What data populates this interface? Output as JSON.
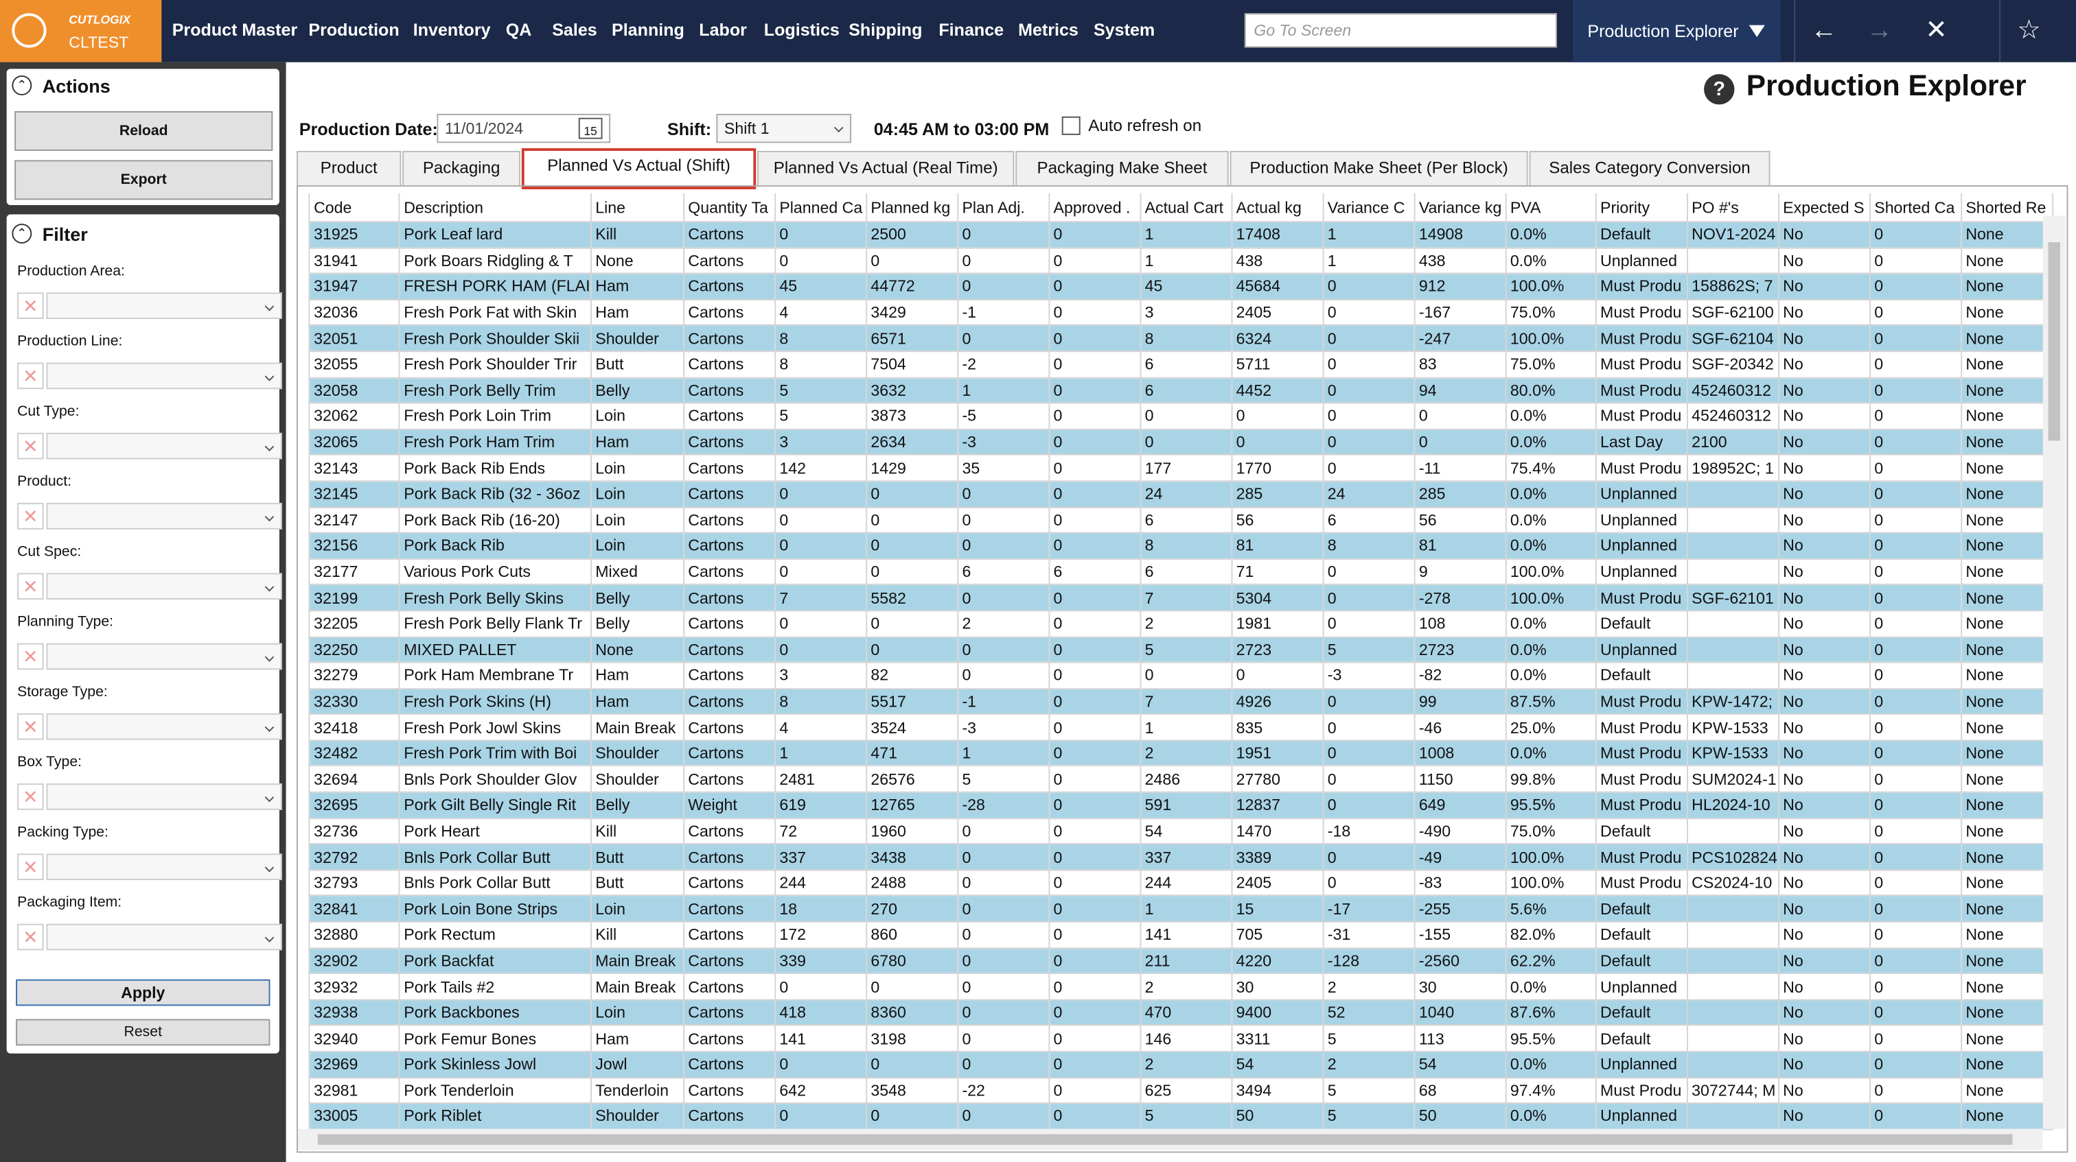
{
  "nav": {
    "logo_brand": "CUTLOGIX",
    "logo_env": "CLTEST",
    "menu": [
      "Product Master",
      "Production",
      "Inventory",
      "QA",
      "Sales",
      "Planning",
      "Labor",
      "Logistics",
      "Shipping",
      "Finance",
      "Metrics",
      "System"
    ],
    "search_placeholder": "Go To Screen",
    "screen": "Production Explorer"
  },
  "actions": {
    "title": "Actions",
    "buttons": [
      "Reload",
      "Export"
    ]
  },
  "filter": {
    "title": "Filter",
    "fields": [
      "Production Area:",
      "Production Line:",
      "Cut Type:",
      "Product:",
      "Cut Spec:",
      "Planning Type:",
      "Storage Type:",
      "Box Type:",
      "Packing Type:",
      "Packaging Item:"
    ],
    "buttons": [
      "Apply",
      "Reset"
    ]
  },
  "page": {
    "title": "Production Explorer",
    "date_label": "Production Date:",
    "date": "11/01/2024",
    "calendar_day": "15",
    "shift_label": "Shift:",
    "shift": "Shift 1",
    "time_range": "04:45 AM to 03:00 PM",
    "auto_refresh": "Auto refresh on"
  },
  "tabs": [
    "Product",
    "Packaging",
    "Planned Vs Actual (Shift)",
    "Planned Vs Actual (Real Time)",
    "Packaging Make Sheet",
    "Production Make Sheet (Per Block)",
    "Sales Category Conversion"
  ],
  "active_tab": 2,
  "table": {
    "columns": [
      "Code",
      "Description",
      "Line",
      "Quantity Ta",
      "Planned Ca",
      "Planned kg",
      "Plan Adj.",
      "Approved .",
      "Actual Cart",
      "Actual kg",
      "Variance C",
      "Variance kg",
      "PVA",
      "Priority",
      "PO #'s",
      "Expected S",
      "Shorted Ca",
      "Shorted Re"
    ],
    "rows": [
      [
        "31925",
        "Pork Leaf lard",
        "Kill",
        "Cartons",
        "0",
        "2500",
        "0",
        "0",
        "1",
        "17408",
        "1",
        "14908",
        "0.0%",
        "Default",
        "NOV1-2024",
        "No",
        "0",
        "None"
      ],
      [
        "31941",
        "Pork Boars Ridgling & T",
        "None",
        "Cartons",
        "0",
        "0",
        "0",
        "0",
        "1",
        "438",
        "1",
        "438",
        "0.0%",
        "Unplanned",
        null,
        "No",
        "0",
        "None"
      ],
      [
        "31947",
        "FRESH PORK HAM (FLAI",
        "Ham",
        "Cartons",
        "45",
        "44772",
        "0",
        "0",
        "45",
        "45684",
        "0",
        "912",
        "100.0%",
        "Must Produ",
        "158862S; 7",
        "No",
        "0",
        "None"
      ],
      [
        "32036",
        "Fresh Pork Fat with Skin",
        "Ham",
        "Cartons",
        "4",
        "3429",
        "-1",
        "0",
        "3",
        "2405",
        "0",
        "-167",
        "75.0%",
        "Must Produ",
        "SGF-62100",
        "No",
        "0",
        "None"
      ],
      [
        "32051",
        "Fresh Pork Shoulder Skii",
        "Shoulder",
        "Cartons",
        "8",
        "6571",
        "0",
        "0",
        "8",
        "6324",
        "0",
        "-247",
        "100.0%",
        "Must Produ",
        "SGF-62104",
        "No",
        "0",
        "None"
      ],
      [
        "32055",
        "Fresh Pork Shoulder Trir",
        "Butt",
        "Cartons",
        "8",
        "7504",
        "-2",
        "0",
        "6",
        "5711",
        "0",
        "83",
        "75.0%",
        "Must Produ",
        "SGF-20342",
        "No",
        "0",
        "None"
      ],
      [
        "32058",
        "Fresh Pork Belly Trim",
        "Belly",
        "Cartons",
        "5",
        "3632",
        "1",
        "0",
        "6",
        "4452",
        "0",
        "94",
        "80.0%",
        "Must Produ",
        "452460312",
        "No",
        "0",
        "None"
      ],
      [
        "32062",
        "Fresh Pork Loin Trim",
        "Loin",
        "Cartons",
        "5",
        "3873",
        "-5",
        "0",
        "0",
        "0",
        "0",
        "0",
        "0.0%",
        "Must Produ",
        "452460312",
        "No",
        "0",
        "None"
      ],
      [
        "32065",
        "Fresh Pork Ham Trim",
        "Ham",
        "Cartons",
        "3",
        "2634",
        "-3",
        "0",
        "0",
        "0",
        "0",
        "0",
        "0.0%",
        "Last Day",
        "2100",
        "No",
        "0",
        "None"
      ],
      [
        "32143",
        "Pork Back Rib Ends",
        "Loin",
        "Cartons",
        "142",
        "1429",
        "35",
        "0",
        "177",
        "1770",
        "0",
        "-11",
        "75.4%",
        "Must Produ",
        "198952C; 1",
        "No",
        "0",
        "None"
      ],
      [
        "32145",
        "Pork Back Rib (32 - 36oz",
        "Loin",
        "Cartons",
        "0",
        "0",
        "0",
        "0",
        "24",
        "285",
        "24",
        "285",
        "0.0%",
        "Unplanned",
        null,
        "No",
        "0",
        "None"
      ],
      [
        "32147",
        "Pork Back Rib (16-20)",
        "Loin",
        "Cartons",
        "0",
        "0",
        "0",
        "0",
        "6",
        "56",
        "6",
        "56",
        "0.0%",
        "Unplanned",
        null,
        "No",
        "0",
        "None"
      ],
      [
        "32156",
        "Pork Back Rib",
        "Loin",
        "Cartons",
        "0",
        "0",
        "0",
        "0",
        "8",
        "81",
        "8",
        "81",
        "0.0%",
        "Unplanned",
        null,
        "No",
        "0",
        "None"
      ],
      [
        "32177",
        "Various Pork Cuts",
        "Mixed",
        "Cartons",
        "0",
        "0",
        "6",
        "6",
        "6",
        "71",
        "0",
        "9",
        "100.0%",
        "Unplanned",
        null,
        "No",
        "0",
        "None"
      ],
      [
        "32199",
        "Fresh Pork Belly Skins",
        "Belly",
        "Cartons",
        "7",
        "5582",
        "0",
        "0",
        "7",
        "5304",
        "0",
        "-278",
        "100.0%",
        "Must Produ",
        "SGF-62101",
        "No",
        "0",
        "None"
      ],
      [
        "32205",
        "Fresh Pork Belly Flank Tr",
        "Belly",
        "Cartons",
        "0",
        "0",
        "2",
        "0",
        "2",
        "1981",
        "0",
        "108",
        "0.0%",
        "Default",
        null,
        "No",
        "0",
        "None"
      ],
      [
        "32250",
        "MIXED PALLET",
        "None",
        "Cartons",
        "0",
        "0",
        "0",
        "0",
        "5",
        "2723",
        "5",
        "2723",
        "0.0%",
        "Unplanned",
        null,
        "No",
        "0",
        "None"
      ],
      [
        "32279",
        "Pork Ham Membrane Tr",
        "Ham",
        "Cartons",
        "3",
        "82",
        "0",
        "0",
        "0",
        "0",
        "-3",
        "-82",
        "0.0%",
        "Default",
        null,
        "No",
        "0",
        "None"
      ],
      [
        "32330",
        "Fresh Pork Skins (H)",
        "Ham",
        "Cartons",
        "8",
        "5517",
        "-1",
        "0",
        "7",
        "4926",
        "0",
        "99",
        "87.5%",
        "Must Produ",
        "KPW-1472;",
        "No",
        "0",
        "None"
      ],
      [
        "32418",
        "Fresh Pork Jowl Skins",
        "Main Break",
        "Cartons",
        "4",
        "3524",
        "-3",
        "0",
        "1",
        "835",
        "0",
        "-46",
        "25.0%",
        "Must Produ",
        "KPW-1533",
        "No",
        "0",
        "None"
      ],
      [
        "32482",
        "Fresh Pork Trim with Boi",
        "Shoulder",
        "Cartons",
        "1",
        "471",
        "1",
        "0",
        "2",
        "1951",
        "0",
        "1008",
        "0.0%",
        "Must Produ",
        "KPW-1533",
        "No",
        "0",
        "None"
      ],
      [
        "32694",
        "Bnls Pork Shoulder Glov",
        "Shoulder",
        "Cartons",
        "2481",
        "26576",
        "5",
        "0",
        "2486",
        "27780",
        "0",
        "1150",
        "99.8%",
        "Must Produ",
        "SUM2024-1",
        "No",
        "0",
        "None"
      ],
      [
        "32695",
        "Pork Gilt Belly Single Rit",
        "Belly",
        "Weight",
        "619",
        "12765",
        "-28",
        "0",
        "591",
        "12837",
        "0",
        "649",
        "95.5%",
        "Must Produ",
        "HL2024-10",
        "No",
        "0",
        "None"
      ],
      [
        "32736",
        "Pork Heart",
        "Kill",
        "Cartons",
        "72",
        "1960",
        "0",
        "0",
        "54",
        "1470",
        "-18",
        "-490",
        "75.0%",
        "Default",
        null,
        "No",
        "0",
        "None"
      ],
      [
        "32792",
        "Bnls Pork Collar Butt",
        "Butt",
        "Cartons",
        "337",
        "3438",
        "0",
        "0",
        "337",
        "3389",
        "0",
        "-49",
        "100.0%",
        "Must Produ",
        "PCS102824",
        "No",
        "0",
        "None"
      ],
      [
        "32793",
        "Bnls Pork Collar Butt",
        "Butt",
        "Cartons",
        "244",
        "2488",
        "0",
        "0",
        "244",
        "2405",
        "0",
        "-83",
        "100.0%",
        "Must Produ",
        "CS2024-10",
        "No",
        "0",
        "None"
      ],
      [
        "32841",
        "Pork Loin Bone Strips",
        "Loin",
        "Cartons",
        "18",
        "270",
        "0",
        "0",
        "1",
        "15",
        "-17",
        "-255",
        "5.6%",
        "Default",
        null,
        "No",
        "0",
        "None"
      ],
      [
        "32880",
        "Pork Rectum",
        "Kill",
        "Cartons",
        "172",
        "860",
        "0",
        "0",
        "141",
        "705",
        "-31",
        "-155",
        "82.0%",
        "Default",
        null,
        "No",
        "0",
        "None"
      ],
      [
        "32902",
        "Pork Backfat",
        "Main Break",
        "Cartons",
        "339",
        "6780",
        "0",
        "0",
        "211",
        "4220",
        "-128",
        "-2560",
        "62.2%",
        "Default",
        null,
        "No",
        "0",
        "None"
      ],
      [
        "32932",
        "Pork Tails #2",
        "Main Break",
        "Cartons",
        "0",
        "0",
        "0",
        "0",
        "2",
        "30",
        "2",
        "30",
        "0.0%",
        "Unplanned",
        null,
        "No",
        "0",
        "None"
      ],
      [
        "32938",
        "Pork Backbones",
        "Loin",
        "Cartons",
        "418",
        "8360",
        "0",
        "0",
        "470",
        "9400",
        "52",
        "1040",
        "87.6%",
        "Default",
        null,
        "No",
        "0",
        "None"
      ],
      [
        "32940",
        "Pork Femur Bones",
        "Ham",
        "Cartons",
        "141",
        "3198",
        "0",
        "0",
        "146",
        "3311",
        "5",
        "113",
        "95.5%",
        "Default",
        null,
        "No",
        "0",
        "None"
      ],
      [
        "32969",
        "Pork Skinless Jowl",
        "Jowl",
        "Cartons",
        "0",
        "0",
        "0",
        "0",
        "2",
        "54",
        "2",
        "54",
        "0.0%",
        "Unplanned",
        null,
        "No",
        "0",
        "None"
      ],
      [
        "32981",
        "Pork Tenderloin",
        "Tenderloin",
        "Cartons",
        "642",
        "3548",
        "-22",
        "0",
        "625",
        "3494",
        "5",
        "68",
        "97.4%",
        "Must Produ",
        "3072744; M",
        "No",
        "0",
        "None"
      ],
      [
        "33005",
        "Pork Riblet",
        "Shoulder",
        "Cartons",
        "0",
        "0",
        "0",
        "0",
        "5",
        "50",
        "5",
        "50",
        "0.0%",
        "Unplanned",
        null,
        "No",
        "0",
        "None"
      ]
    ]
  }
}
